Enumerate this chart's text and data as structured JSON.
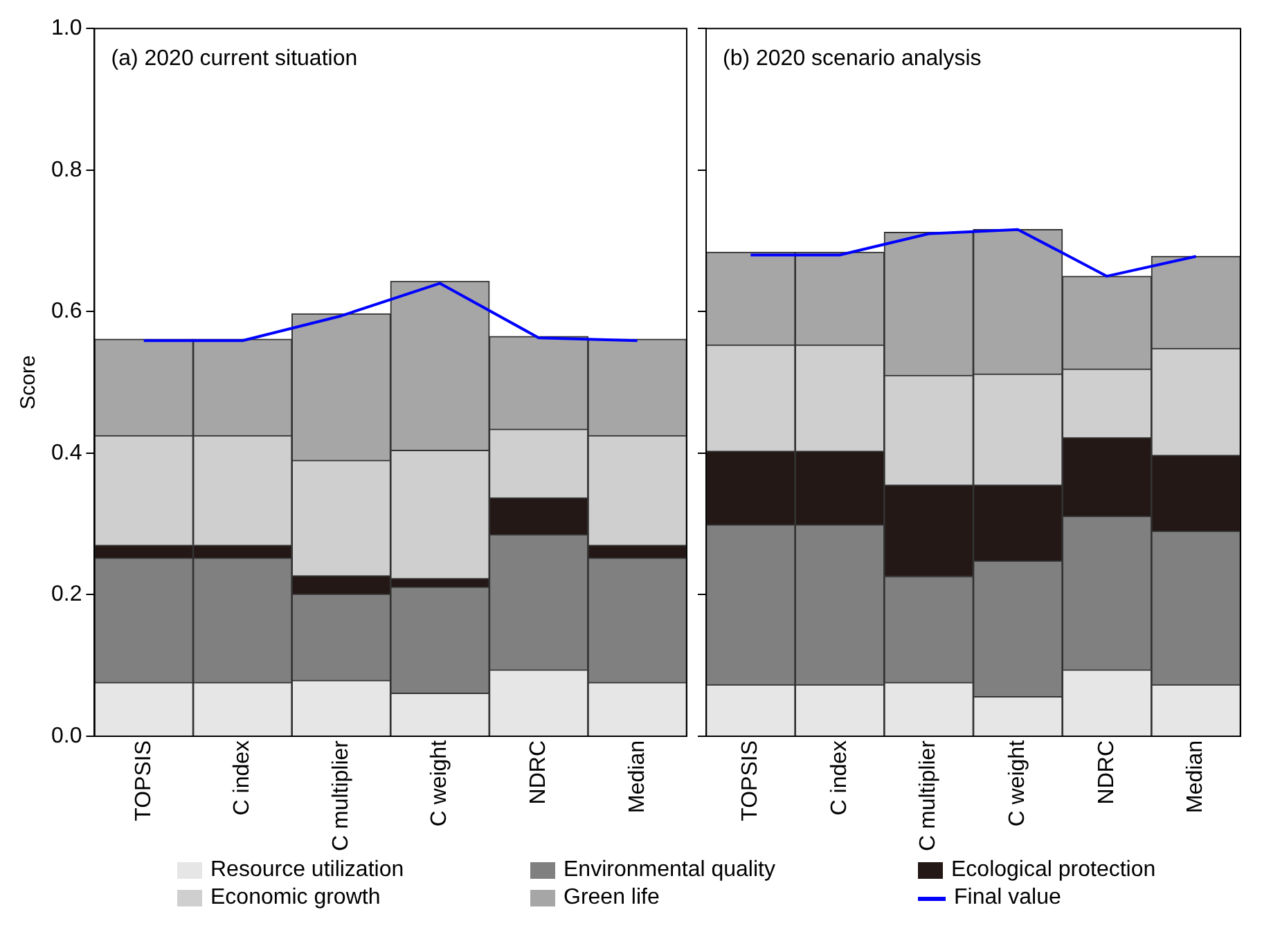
{
  "chart_data": [
    {
      "type": "bar",
      "title": "(a) 2020 current situation",
      "ylabel": "Score",
      "stacked": true,
      "categories": [
        "TOPSIS",
        "C index",
        "C multiplier",
        "C weight",
        "NDRC",
        "Median"
      ],
      "ylim": [
        0,
        1
      ],
      "yticks": [
        {
          "value": 0,
          "label": "0.0"
        },
        {
          "value": 0.2,
          "label": "0.2"
        },
        {
          "value": 0.4,
          "label": "0.4"
        },
        {
          "value": 0.6,
          "label": "0.6"
        },
        {
          "value": 0.8,
          "label": "0.8"
        },
        {
          "value": 1,
          "label": "1.0"
        }
      ],
      "grid": false,
      "legend": "bottom",
      "series": [
        {
          "name": "Resource utilization",
          "color": "#e6e6e6",
          "values": [
            0.076,
            0.076,
            0.079,
            0.061,
            0.094,
            0.076
          ]
        },
        {
          "name": "Environmental quality",
          "color": "#808080",
          "values": [
            0.176,
            0.176,
            0.122,
            0.15,
            0.191,
            0.176
          ]
        },
        {
          "name": "Ecological protection",
          "color": "#231815",
          "values": [
            0.018,
            0.018,
            0.026,
            0.012,
            0.052,
            0.018
          ]
        },
        {
          "name": "Economic growth",
          "color": "#cfcfcf",
          "values": [
            0.155,
            0.155,
            0.163,
            0.181,
            0.097,
            0.155
          ]
        },
        {
          "name": "Green life",
          "color": "#a6a6a6",
          "values": [
            0.136,
            0.136,
            0.207,
            0.239,
            0.131,
            0.136
          ]
        },
        {
          "name": "Final value",
          "type": "line",
          "color": "#0000ff",
          "marker": "none",
          "values": [
            0.559,
            0.559,
            0.594,
            0.64,
            0.563,
            0.559
          ]
        }
      ]
    },
    {
      "type": "bar",
      "title": "(b) 2020 scenario analysis",
      "stacked": true,
      "categories": [
        "TOPSIS",
        "C index",
        "C multiplier",
        "C weight",
        "NDRC",
        "Median"
      ],
      "ylim": [
        0,
        1
      ],
      "yticks": [
        {
          "value": 0,
          "label": null
        },
        {
          "value": 0.2,
          "label": null
        },
        {
          "value": 0.4,
          "label": null
        },
        {
          "value": 0.6,
          "label": null
        },
        {
          "value": 0.8,
          "label": null
        },
        {
          "value": 1,
          "label": null
        }
      ],
      "tick_labels": "x",
      "grid": false,
      "series": [
        {
          "color": "#e6e6e6",
          "values": [
            0.073,
            0.073,
            0.076,
            0.056,
            0.094,
            0.073
          ]
        },
        {
          "color": "#808080",
          "values": [
            0.226,
            0.226,
            0.15,
            0.192,
            0.217,
            0.217
          ]
        },
        {
          "color": "#231815",
          "values": [
            0.104,
            0.104,
            0.129,
            0.107,
            0.111,
            0.107
          ]
        },
        {
          "color": "#cfcfcf",
          "values": [
            0.15,
            0.15,
            0.155,
            0.157,
            0.097,
            0.151
          ]
        },
        {
          "color": "#a6a6a6",
          "values": [
            0.131,
            0.131,
            0.202,
            0.204,
            0.131,
            0.13
          ]
        },
        {
          "type": "line",
          "color": "#0000ff",
          "marker": "none",
          "values": [
            0.68,
            0.68,
            0.71,
            0.716,
            0.65,
            0.678
          ]
        }
      ]
    }
  ]
}
